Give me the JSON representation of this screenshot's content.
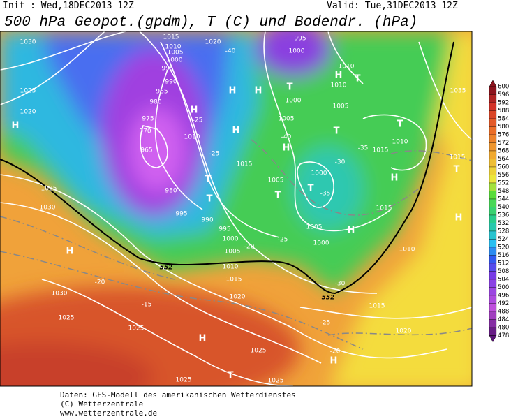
{
  "header": {
    "init": "Init : Wed,18DEC2013 12Z",
    "valid": "Valid: Tue,31DEC2013 12Z",
    "title": "500 hPa Geopot.(gpdm), T (C) und Bodendr. (hPa)"
  },
  "colorbar": {
    "ticks": [
      600,
      596,
      592,
      588,
      584,
      580,
      576,
      572,
      568,
      564,
      560,
      556,
      552,
      548,
      544,
      540,
      536,
      532,
      528,
      524,
      520,
      516,
      512,
      508,
      504,
      500,
      496,
      492,
      488,
      484,
      480,
      478
    ]
  },
  "map": {
    "labels": [
      "1030",
      "1025",
      "1020",
      "H",
      "1025",
      "1030",
      "H",
      "1030",
      "1025",
      "1025",
      "H",
      "1025",
      "1025",
      "T",
      "1025",
      "1020",
      "1015",
      "1010",
      "1005",
      "1000",
      "995",
      "990",
      "995",
      "980",
      "965",
      "970",
      "975",
      "980",
      "985",
      "990",
      "995",
      "1000",
      "1005",
      "1010",
      "1015",
      "1020",
      "-40",
      "995",
      "1000",
      "T",
      "H",
      "1000",
      "1005",
      "1010",
      "1010",
      "T",
      "H",
      "1005",
      "T",
      "1000",
      "T",
      "-35",
      "1005",
      "T",
      "1005",
      "H",
      "1000",
      "1015",
      "H",
      "1015",
      "-35",
      "-30",
      "T",
      "1010",
      "1035",
      "1015",
      "T",
      "H",
      "1010",
      "1015",
      "1020",
      "-25",
      "-20",
      "H",
      "-30",
      "552",
      "-20",
      "-25",
      "-25",
      "T",
      "H",
      "H",
      "H",
      "1010",
      "1015",
      "-25",
      "T",
      "-20",
      "-15",
      "552",
      "-40",
      "H"
    ]
  },
  "footer": [
    "Daten: GFS-Modell des amerikanischen Wetterdienstes",
    "(C) Wetterzentrale",
    "www.wetterzentrale.de"
  ]
}
